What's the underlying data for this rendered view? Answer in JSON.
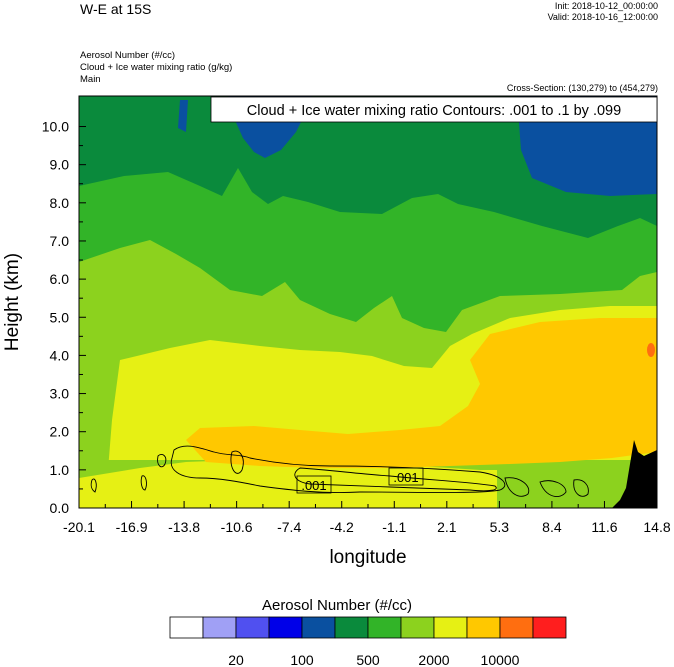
{
  "header": {
    "title": "W-E at 15S",
    "init": "Init: 2018-10-12_00:00:00",
    "valid": "Valid: 2018-10-16_12:00:00",
    "fields": [
      "Aerosol Number   (#/cc)",
      "Cloud + Ice water mixing ratio   (g/kg)",
      "Main"
    ],
    "cross_section": "Cross-Section: (130,279) to (454,279)"
  },
  "chart_data": {
    "type": "heatmap",
    "title": "W-E at 15S",
    "xlabel": "longitude",
    "ylabel": "Height (km)",
    "xlim": [
      -20.1,
      14.8
    ],
    "ylim": [
      0.0,
      10.8
    ],
    "x_ticks": [
      "-20.1",
      "-16.9",
      "-13.8",
      "-10.6",
      "-7.4",
      "-4.2",
      "-1.1",
      "2.1",
      "5.3",
      "8.4",
      "11.6",
      "14.8"
    ],
    "y_ticks": [
      "0.0",
      "1.0",
      "2.0",
      "3.0",
      "4.0",
      "5.0",
      "6.0",
      "7.0",
      "8.0",
      "9.0",
      "10.0"
    ],
    "y_tick_values": [
      0,
      1,
      2,
      3,
      4,
      5,
      6,
      7,
      8,
      9,
      10
    ],
    "contour_title": "Cloud + Ice water mixing ratio Contours: .001 to .1 by .099",
    "contour_labels": [
      ".001",
      ".001"
    ],
    "colorbar": {
      "title": "Aerosol Number  (#/cc)",
      "colors": [
        "#ffffff",
        "#a0a0f5",
        "#5050f0",
        "#0000e8",
        "#0a50a0",
        "#0a8a3c",
        "#32b428",
        "#8cd21e",
        "#e6f014",
        "#ffc800",
        "#ff6e10",
        "#ff1e1e"
      ],
      "labels": [
        "20",
        "100",
        "500",
        "2000",
        "10000"
      ]
    },
    "colors": {
      "dark_green": "#0a8a3c",
      "green": "#32b428",
      "light_green": "#8cd21e",
      "yellow": "#e6f014",
      "orange": "#ffc800",
      "red": "#ff6e10",
      "blue": "#0a50a0",
      "terrain": "#000000"
    }
  }
}
